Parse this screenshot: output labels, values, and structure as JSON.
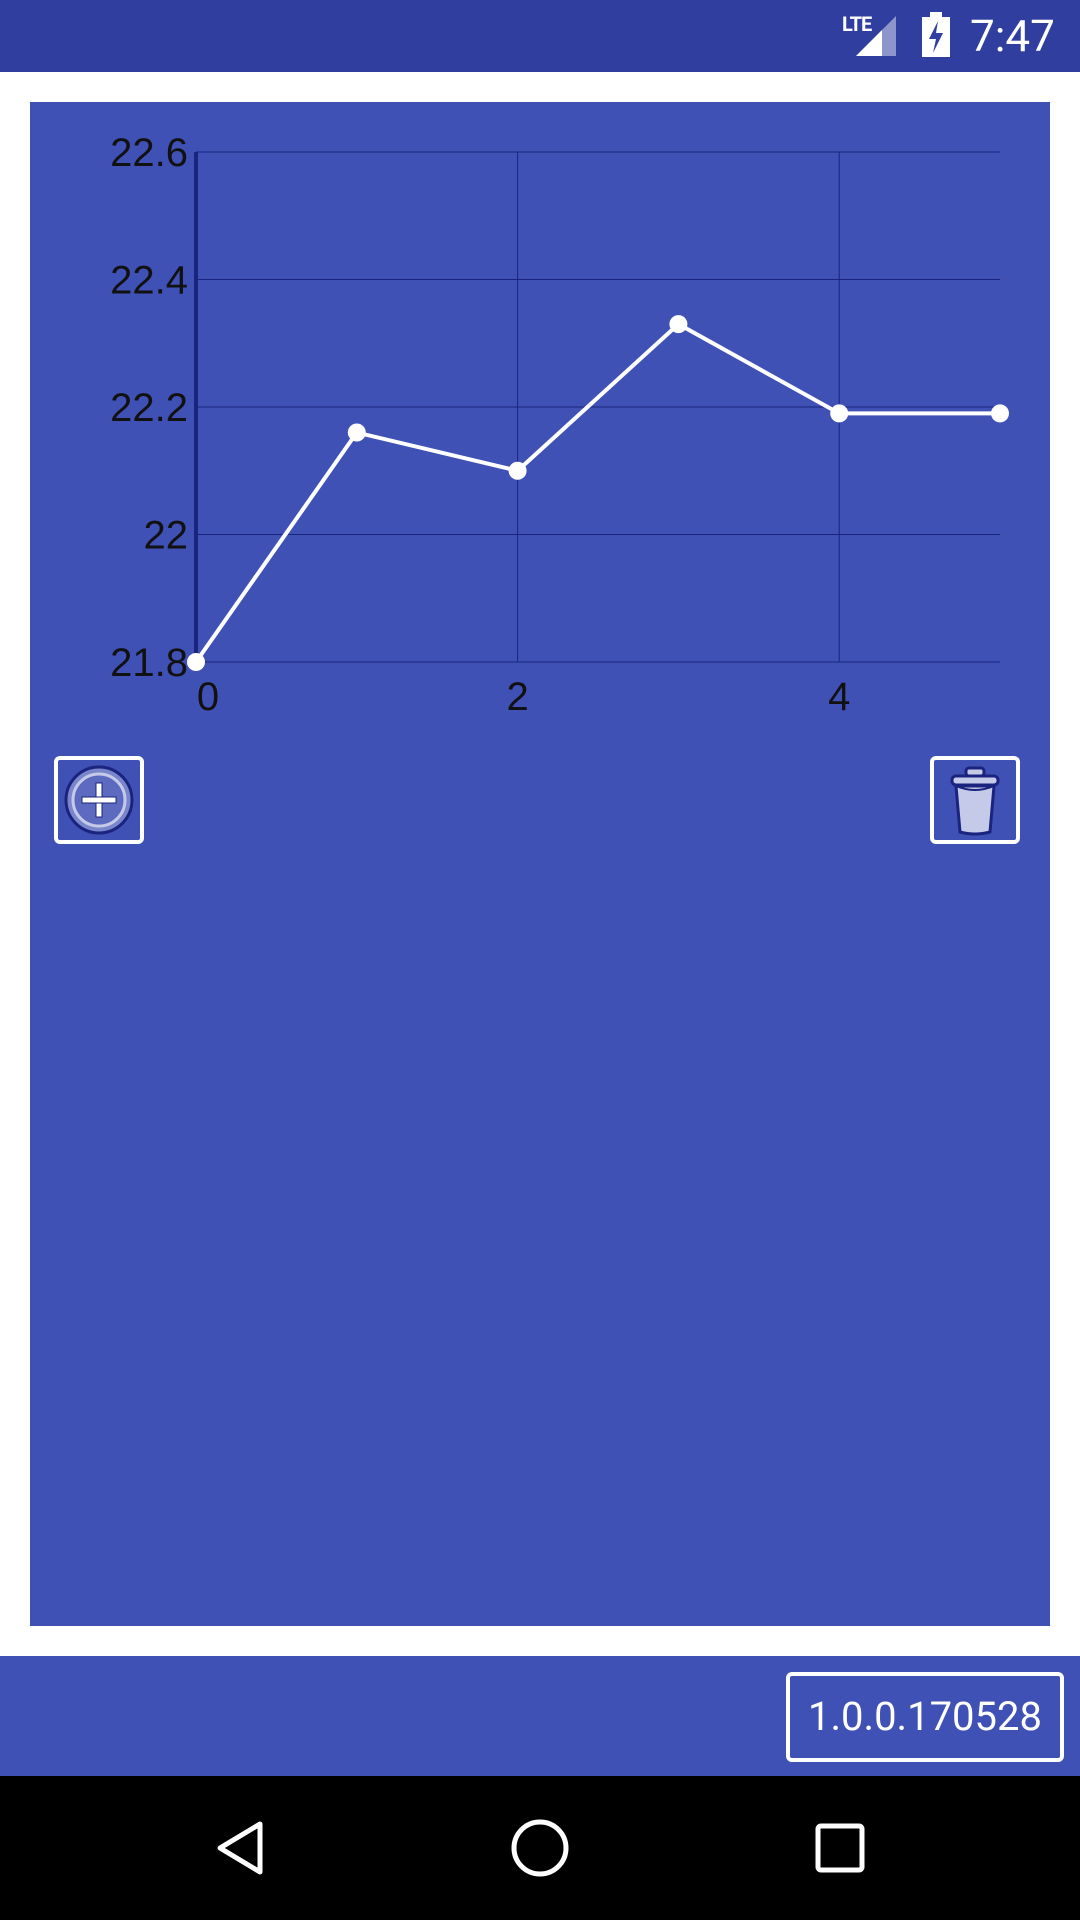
{
  "status_bar": {
    "network": "LTE",
    "time": "7:47",
    "icons": [
      "lte-signal-icon",
      "battery-charging-icon"
    ]
  },
  "chart_data": {
    "type": "line",
    "x": [
      0,
      1,
      2,
      3,
      4,
      5
    ],
    "values": [
      21.8,
      22.16,
      22.1,
      22.33,
      22.19,
      22.19
    ],
    "xlim": [
      0,
      5
    ],
    "ylim": [
      21.8,
      22.6
    ],
    "x_ticks": [
      0,
      2,
      4
    ],
    "y_ticks": [
      21.8,
      22,
      22.2,
      22.4,
      22.6
    ],
    "x_tick_labels": [
      "0",
      "2",
      "4"
    ],
    "y_tick_labels": [
      "21.8",
      "22",
      "22.2",
      "22.4",
      "22.6"
    ],
    "title": "",
    "xlabel": "",
    "ylabel": "",
    "grid": true,
    "line_color": "#ffffff",
    "grid_color": "#1a237e"
  },
  "actions": {
    "add_icon": "add-circle-icon",
    "delete_icon": "trash-icon"
  },
  "footer": {
    "version": "1.0.0.170528"
  },
  "nav_bar": {
    "icons": [
      "back-icon",
      "home-icon",
      "recents-icon"
    ]
  },
  "colors": {
    "status_bar": "#303f9f",
    "primary": "#3f51b5",
    "background": "#ffffff"
  }
}
